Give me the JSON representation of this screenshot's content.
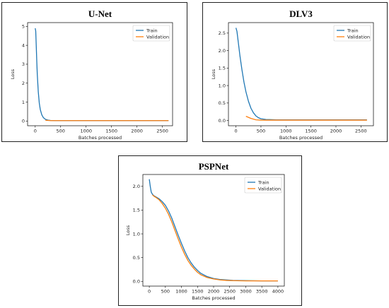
{
  "colors": {
    "train": "#1f77b4",
    "validation": "#ff7f0e"
  },
  "chart_data": [
    {
      "type": "line",
      "title": "U-Net",
      "xlabel": "Batches processed",
      "ylabel": "Loss",
      "xlim": [
        -150,
        2700
      ],
      "ylim": [
        -0.25,
        5.2
      ],
      "xticks": [
        0,
        500,
        1000,
        1500,
        2000,
        2500
      ],
      "yticks": [
        0,
        1,
        2,
        3,
        4,
        5
      ],
      "legend": "top-right",
      "series": [
        {
          "name": "Train",
          "x": [
            0,
            10,
            20,
            30,
            40,
            60,
            80,
            100,
            130,
            160,
            200,
            250,
            300,
            400,
            600,
            1000,
            1500,
            2000,
            2620
          ],
          "y": [
            4.9,
            4.75,
            4.0,
            3.2,
            2.5,
            1.55,
            0.95,
            0.6,
            0.32,
            0.18,
            0.09,
            0.05,
            0.03,
            0.02,
            0.02,
            0.02,
            0.02,
            0.02,
            0.02
          ]
        },
        {
          "name": "Validation",
          "x": [
            200,
            300,
            500,
            1000,
            1500,
            2000,
            2620
          ],
          "y": [
            0.04,
            0.02,
            0.02,
            0.02,
            0.02,
            0.02,
            0.02
          ]
        }
      ]
    },
    {
      "type": "line",
      "title": "DLV3",
      "xlabel": "Batches processed",
      "ylabel": "Loss",
      "xlim": [
        -150,
        2750
      ],
      "ylim": [
        -0.15,
        2.8
      ],
      "xticks": [
        0,
        500,
        1000,
        1500,
        2000,
        2500
      ],
      "yticks": [
        0.0,
        0.5,
        1.0,
        1.5,
        2.0,
        2.5
      ],
      "legend": "top-right",
      "series": [
        {
          "name": "Train",
          "x": [
            0,
            20,
            50,
            80,
            120,
            160,
            200,
            250,
            300,
            350,
            400,
            450,
            500,
            600,
            800,
            1000,
            1500,
            2000,
            2620
          ],
          "y": [
            2.65,
            2.55,
            2.2,
            1.85,
            1.45,
            1.1,
            0.82,
            0.55,
            0.35,
            0.22,
            0.13,
            0.08,
            0.05,
            0.03,
            0.02,
            0.02,
            0.02,
            0.02,
            0.02
          ]
        },
        {
          "name": "Validation",
          "x": [
            200,
            250,
            300,
            350,
            400,
            500,
            700,
            1000,
            1500,
            2000,
            2620
          ],
          "y": [
            0.12,
            0.09,
            0.06,
            0.04,
            0.02,
            0.01,
            0.01,
            0.01,
            0.01,
            0.01,
            0.01
          ]
        }
      ]
    },
    {
      "type": "line",
      "title": "PSPNet",
      "xlabel": "Batches processed",
      "ylabel": "Loss",
      "xlim": [
        -200,
        4200
      ],
      "ylim": [
        -0.1,
        2.25
      ],
      "xticks": [
        0,
        500,
        1000,
        1500,
        2000,
        2500,
        3000,
        3500,
        4000
      ],
      "yticks": [
        0.0,
        0.5,
        1.0,
        1.5,
        2.0
      ],
      "legend": "top-right",
      "series": [
        {
          "name": "Train",
          "x": [
            0,
            30,
            60,
            100,
            150,
            200,
            300,
            400,
            500,
            600,
            700,
            800,
            900,
            1000,
            1100,
            1200,
            1300,
            1400,
            1500,
            1600,
            1800,
            2000,
            2200,
            2400,
            2600,
            3000,
            3500,
            4000
          ],
          "y": [
            2.15,
            2.0,
            1.88,
            1.83,
            1.8,
            1.78,
            1.74,
            1.68,
            1.6,
            1.48,
            1.33,
            1.15,
            0.97,
            0.8,
            0.64,
            0.5,
            0.39,
            0.3,
            0.23,
            0.17,
            0.1,
            0.06,
            0.04,
            0.03,
            0.02,
            0.015,
            0.01,
            0.01
          ]
        },
        {
          "name": "Validation",
          "x": [
            100,
            150,
            200,
            300,
            400,
            500,
            600,
            700,
            800,
            900,
            1000,
            1100,
            1200,
            1300,
            1400,
            1500,
            1600,
            1800,
            2000,
            2200,
            2400,
            2600,
            3000,
            3500,
            4000
          ],
          "y": [
            1.82,
            1.79,
            1.77,
            1.72,
            1.64,
            1.54,
            1.41,
            1.25,
            1.07,
            0.89,
            0.72,
            0.57,
            0.44,
            0.34,
            0.26,
            0.19,
            0.14,
            0.08,
            0.05,
            0.03,
            0.02,
            0.015,
            0.01,
            0.01,
            0.01
          ]
        }
      ]
    }
  ]
}
